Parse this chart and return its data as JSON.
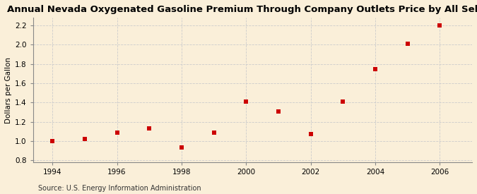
{
  "title": "Annual Nevada Oxygenated Gasoline Premium Through Company Outlets Price by All Sellers",
  "ylabel": "Dollars per Gallon",
  "source": "Source: U.S. Energy Information Administration",
  "background_color": "#faefd9",
  "x_values": [
    1994,
    1995,
    1996,
    1997,
    1998,
    1999,
    2000,
    2001,
    2002,
    2003,
    2004,
    2005,
    2006
  ],
  "y_values": [
    1.0,
    1.02,
    1.09,
    1.13,
    0.93,
    1.09,
    1.41,
    1.31,
    1.07,
    1.41,
    1.75,
    2.01,
    2.2
  ],
  "marker_color": "#cc0000",
  "marker_style": "s",
  "marker_size": 4,
  "xlim": [
    1993.4,
    2007.0
  ],
  "ylim": [
    0.78,
    2.28
  ],
  "yticks": [
    0.8,
    1.0,
    1.2,
    1.4,
    1.6,
    1.8,
    2.0,
    2.2
  ],
  "xticks": [
    1994,
    1996,
    1998,
    2000,
    2002,
    2004,
    2006
  ],
  "grid_color": "#cccccc",
  "title_fontsize": 9.5,
  "label_fontsize": 7.5,
  "tick_fontsize": 7.5,
  "source_fontsize": 7.0
}
